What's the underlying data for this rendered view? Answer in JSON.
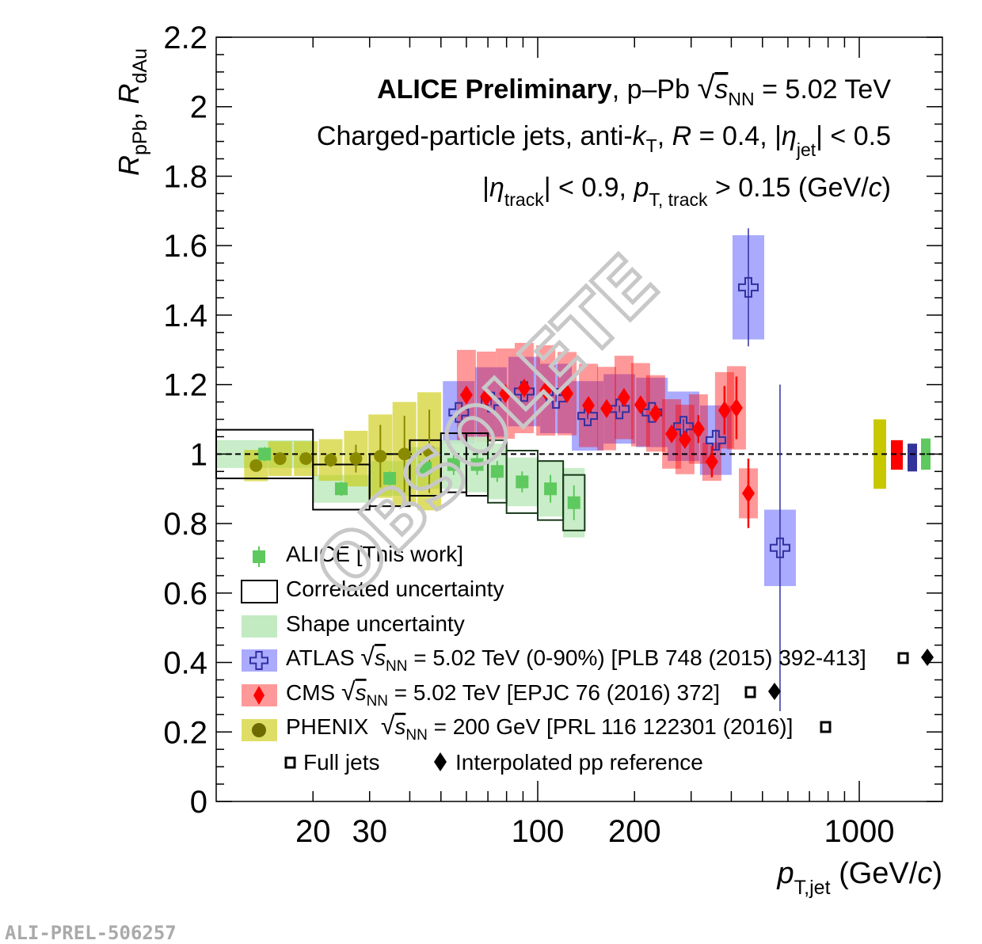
{
  "header": {
    "line1_bold": "ALICE Preliminary",
    "line1_rest": ", p–Pb ",
    "sqrt": "√",
    "s": "s",
    "nn": "NN",
    "line1_energy": " = 5.02 TeV",
    "line2_a": "Charged-particle jets, anti-",
    "line2_k": "k",
    "line2_T": "T",
    "line2_b": ", ",
    "line2_R": "R",
    "line2_c": " = 0.4, |",
    "line2_eta": "η",
    "line2_jet": "jet",
    "line2_d": "| < 0.5",
    "line3_a": "|",
    "line3_eta": "η",
    "line3_track": "track",
    "line3_b": "| < 0.9, ",
    "line3_p": "p",
    "line3_Ttrack": "T, track",
    "line3_c": " > 0.15 (GeV/",
    "line3_cc": "c",
    "line3_d": ")"
  },
  "legend": {
    "alice": "ALICE [This work]",
    "corr": "Correlated uncertainty",
    "shape": "Shape uncertainty",
    "atlas_a": "ATLAS ",
    "atlas_b": " = 5.02 TeV (0-90%) [PLB 748 (2015) 392-413]",
    "cms_a": "CMS ",
    "cms_b": " = 5.02 TeV [EPJC 76 (2016) 372]",
    "phenix_a": "PHENIX  ",
    "phenix_b": " = 200 GeV [PRL 116 122301 (2016)]",
    "full_jets": "Full jets",
    "interp": "Interpolated pp reference"
  },
  "watermark": "OBSOLETE",
  "figure_id": "ALI-PREL-506257",
  "chart_data": {
    "type": "scatter",
    "xscale": "log",
    "xlim": [
      10,
      1800
    ],
    "ylim": [
      0,
      2.2
    ],
    "xlabel": {
      "p": "p",
      "sub": "T,jet",
      "unit_a": " (GeV/",
      "unit_c": "c",
      "unit_b": ")"
    },
    "ylabel": {
      "r1": "R",
      "s1": "pPb",
      "sep": ", ",
      "r2": "R",
      "s2": "dAu"
    },
    "x_ticks": [
      {
        "v": 20,
        "label": "20"
      },
      {
        "v": 30,
        "label": "30"
      },
      {
        "v": 100,
        "label": "100"
      },
      {
        "v": 200,
        "label": "200"
      },
      {
        "v": 1000,
        "label": "1000"
      }
    ],
    "y_ticks": [
      "0",
      "0.2",
      "0.4",
      "0.6",
      "0.8",
      "1",
      "1.2",
      "1.4",
      "1.6",
      "1.8",
      "2",
      "2.2"
    ],
    "reference_line": 1,
    "grid": false,
    "legend_position": "bottom-left",
    "colors": {
      "alice": "#5ec95e",
      "alice_shape": "#c2ebc2",
      "atlas": "#3030a0",
      "atlas_box": "#aaaaff",
      "cms": "#ff0000",
      "cms_box": "#ff9999",
      "phenix": "#6b6b00",
      "phenix_box": "#dede66"
    },
    "alice": {
      "bins": [
        [
          10,
          20
        ],
        [
          20,
          30
        ],
        [
          30,
          40
        ],
        [
          40,
          50
        ],
        [
          50,
          60
        ],
        [
          60,
          70
        ],
        [
          70,
          80
        ],
        [
          80,
          100
        ],
        [
          100,
          120
        ],
        [
          120,
          140
        ]
      ],
      "y": [
        1.0,
        0.9,
        0.93,
        0.96,
        0.97,
        0.97,
        0.95,
        0.92,
        0.9,
        0.86
      ],
      "stat": [
        0.02,
        0.02,
        0.02,
        0.02,
        0.03,
        0.03,
        0.03,
        0.03,
        0.04,
        0.05
      ],
      "corr": [
        [
          0.93,
          1.07
        ],
        [
          0.84,
          0.97
        ],
        [
          0.85,
          1.0
        ],
        [
          0.88,
          1.04
        ],
        [
          0.89,
          1.06
        ],
        [
          0.88,
          1.06
        ],
        [
          0.86,
          1.04
        ],
        [
          0.83,
          1.01
        ],
        [
          0.81,
          0.98
        ],
        [
          0.78,
          0.94
        ]
      ],
      "shape": [
        0.04,
        0.04,
        0.05,
        0.06,
        0.07,
        0.08,
        0.08,
        0.07,
        0.08,
        0.1
      ]
    },
    "atlas": {
      "x": [
        56.8,
        71.6,
        90.8,
        114,
        143,
        179.5,
        226.6,
        284,
        358,
        452,
        567
      ],
      "y": [
        1.12,
        1.15,
        1.18,
        1.16,
        1.11,
        1.13,
        1.12,
        1.08,
        1.04,
        1.48,
        0.73
      ],
      "stat": [
        0.01,
        0.01,
        0.01,
        0.01,
        0.01,
        0.01,
        0.01,
        0.02,
        0.03,
        0.17,
        0.47
      ],
      "syst": [
        0.09,
        0.1,
        0.1,
        0.1,
        0.1,
        0.1,
        0.1,
        0.1,
        0.1,
        0.15,
        0.11
      ]
    },
    "cms": {
      "x": [
        60,
        69.2,
        79.3,
        90.8,
        105.9,
        123.4,
        143.8,
        163.8,
        185.5,
        208.9,
        232.6,
        260.9,
        287,
        316,
        348,
        381,
        415,
        452
      ],
      "y": [
        1.17,
        1.165,
        1.174,
        1.19,
        1.183,
        1.174,
        1.14,
        1.131,
        1.163,
        1.142,
        1.117,
        1.058,
        1.042,
        1.072,
        0.978,
        1.126,
        1.133,
        0.887
      ],
      "stat": [
        0.01,
        0.01,
        0.01,
        0.01,
        0.01,
        0.01,
        0.01,
        0.01,
        0.01,
        0.01,
        0.01,
        0.02,
        0.02,
        0.04,
        0.045,
        0.07,
        0.09,
        0.1
      ],
      "syst": [
        0.13,
        0.13,
        0.13,
        0.13,
        0.13,
        0.12,
        0.12,
        0.12,
        0.12,
        0.12,
        0.11,
        0.1,
        0.1,
        0.1,
        0.055,
        0.11,
        0.12,
        0.072
      ]
    },
    "phenix": {
      "x": [
        13.3,
        15.8,
        19.0,
        22.7,
        27.2,
        32.4,
        38.5,
        46.0
      ],
      "y": [
        0.967,
        0.987,
        0.987,
        0.983,
        0.987,
        0.994,
        1.0,
        1.008
      ],
      "stat": [
        0.01,
        0.01,
        0.01,
        0.02,
        0.04,
        0.09,
        0.11,
        0.12
      ],
      "syst": [
        0.045,
        0.05,
        0.05,
        0.06,
        0.08,
        0.12,
        0.15,
        0.17
      ]
    },
    "normalization": [
      {
        "experiment": "PHENIX",
        "lo": 0.9,
        "hi": 1.1,
        "color": "#c8c800"
      },
      {
        "experiment": "CMS",
        "lo": 0.955,
        "hi": 1.04,
        "color": "#ff0000"
      },
      {
        "experiment": "ATLAS",
        "lo": 0.95,
        "hi": 1.03,
        "color": "#333399"
      },
      {
        "experiment": "ALICE",
        "lo": 0.955,
        "hi": 1.045,
        "color": "#5ec95e"
      }
    ]
  }
}
